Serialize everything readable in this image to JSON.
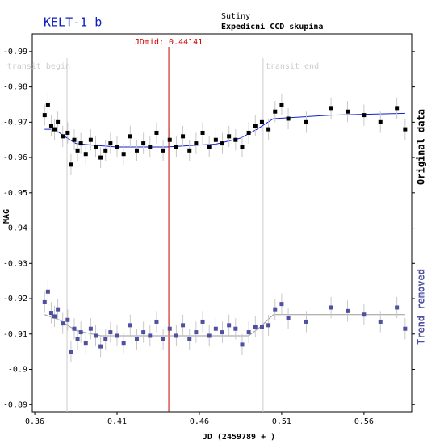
{
  "chart_data": {
    "type": "scatter",
    "title": "KELT-1 b",
    "subtitle": "Sutiny",
    "subtitle2": "Expedicni CCD skupina",
    "xlabel": "JD (2459789 + )",
    "ylabel": "MAG",
    "xlim": [
      0.3585,
      0.589
    ],
    "ylim": [
      -0.995,
      -0.888
    ],
    "y_inverted": true,
    "xticks": [
      0.36,
      0.41,
      0.46,
      0.51,
      0.56
    ],
    "yticks": [
      -0.99,
      -0.98,
      -0.97,
      -0.96,
      -0.95,
      -0.94,
      -0.93,
      -0.92,
      -0.91,
      -0.9,
      -0.89
    ],
    "markers": [
      {
        "value": 0.3796,
        "label": "transit begin",
        "color": "#cccccc"
      },
      {
        "value": 0.4987,
        "label": "transit end",
        "color": "#cccccc"
      },
      {
        "value": 0.44141,
        "label": "JDmid: 0.44141",
        "color": "#cc0000"
      }
    ],
    "series": [
      {
        "name": "Original data",
        "color": "#000000",
        "yerr": 0.003,
        "x": [
          0.366,
          0.368,
          0.37,
          0.372,
          0.374,
          0.377,
          0.38,
          0.382,
          0.384,
          0.386,
          0.388,
          0.391,
          0.394,
          0.397,
          0.4,
          0.403,
          0.406,
          0.41,
          0.414,
          0.418,
          0.422,
          0.426,
          0.43,
          0.434,
          0.438,
          0.442,
          0.446,
          0.45,
          0.454,
          0.458,
          0.462,
          0.466,
          0.47,
          0.474,
          0.478,
          0.482,
          0.486,
          0.49,
          0.494,
          0.498,
          0.502,
          0.506,
          0.51,
          0.514,
          0.525,
          0.54,
          0.55,
          0.56,
          0.57,
          0.58,
          0.585
        ],
        "values": [
          -0.972,
          -0.975,
          -0.969,
          -0.968,
          -0.97,
          -0.966,
          -0.967,
          -0.958,
          -0.965,
          -0.962,
          -0.964,
          -0.961,
          -0.965,
          -0.963,
          -0.96,
          -0.962,
          -0.964,
          -0.963,
          -0.961,
          -0.966,
          -0.962,
          -0.964,
          -0.963,
          -0.967,
          -0.962,
          -0.965,
          -0.963,
          -0.966,
          -0.962,
          -0.964,
          -0.967,
          -0.963,
          -0.965,
          -0.964,
          -0.966,
          -0.965,
          -0.963,
          -0.967,
          -0.969,
          -0.97,
          -0.968,
          -0.973,
          -0.975,
          -0.971,
          -0.97,
          -0.974,
          -0.973,
          -0.972,
          -0.97,
          -0.974,
          -0.968
        ]
      },
      {
        "name": "Trend removed",
        "color": "#5050a0",
        "yerr": 0.003,
        "x": [
          0.366,
          0.368,
          0.37,
          0.372,
          0.374,
          0.377,
          0.38,
          0.382,
          0.384,
          0.386,
          0.388,
          0.391,
          0.394,
          0.397,
          0.4,
          0.403,
          0.406,
          0.41,
          0.414,
          0.418,
          0.422,
          0.426,
          0.43,
          0.434,
          0.438,
          0.442,
          0.446,
          0.45,
          0.454,
          0.458,
          0.462,
          0.466,
          0.47,
          0.474,
          0.478,
          0.482,
          0.486,
          0.49,
          0.494,
          0.498,
          0.502,
          0.506,
          0.51,
          0.514,
          0.525,
          0.54,
          0.55,
          0.56,
          0.57,
          0.58,
          0.585
        ],
        "values": [
          -0.919,
          -0.922,
          -0.916,
          -0.915,
          -0.917,
          -0.913,
          -0.914,
          -0.905,
          -0.9115,
          -0.9085,
          -0.9105,
          -0.9075,
          -0.9115,
          -0.9095,
          -0.9065,
          -0.9085,
          -0.9105,
          -0.9095,
          -0.9075,
          -0.9125,
          -0.9085,
          -0.9105,
          -0.9095,
          -0.9135,
          -0.9085,
          -0.9115,
          -0.9095,
          -0.9125,
          -0.9085,
          -0.9105,
          -0.9135,
          -0.9095,
          -0.9115,
          -0.9105,
          -0.9125,
          -0.9115,
          -0.907,
          -0.9105,
          -0.912,
          -0.912,
          -0.9125,
          -0.917,
          -0.9185,
          -0.9145,
          -0.9135,
          -0.9175,
          -0.9165,
          -0.9155,
          -0.9135,
          -0.9175,
          -0.9115
        ]
      }
    ],
    "trend_lines": [
      {
        "color": "#1020d0",
        "x": [
          0.366,
          0.372,
          0.378,
          0.385,
          0.395,
          0.41,
          0.44,
          0.47,
          0.485,
          0.495,
          0.505,
          0.54,
          0.585
        ],
        "values": [
          -0.968,
          -0.968,
          -0.966,
          -0.964,
          -0.9635,
          -0.963,
          -0.963,
          -0.9638,
          -0.9655,
          -0.968,
          -0.971,
          -0.972,
          -0.9725
        ]
      },
      {
        "color": "#999999",
        "x": [
          0.366,
          0.375,
          0.385,
          0.4,
          0.49,
          0.497,
          0.505,
          0.585
        ],
        "values": [
          -0.9155,
          -0.914,
          -0.911,
          -0.9095,
          -0.9095,
          -0.912,
          -0.9155,
          -0.9155
        ]
      }
    ]
  }
}
